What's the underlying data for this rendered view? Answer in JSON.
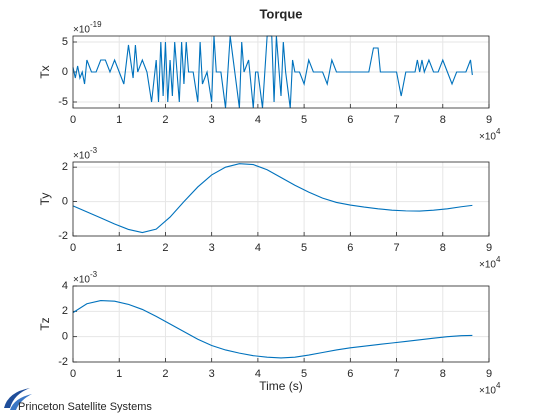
{
  "logo": "Princeton Satellite Systems",
  "chart_data": [
    {
      "type": "line",
      "title": "Torque",
      "y_label": "Tx",
      "grid": true,
      "x_multiplier": "×10",
      "x_exponent": "4",
      "y_multiplier": "×10",
      "y_exponent": "-19",
      "xlim": [
        0,
        90000
      ],
      "xticks": [
        0,
        {
          "value": 10000,
          "label": "1"
        },
        {
          "value": 20000,
          "label": "2"
        },
        {
          "value": 30000,
          "label": "3"
        },
        {
          "value": 40000,
          "label": "4"
        },
        {
          "value": 50000,
          "label": "5"
        },
        {
          "value": 60000,
          "label": "6"
        },
        {
          "value": 70000,
          "label": "7"
        },
        {
          "value": 80000,
          "label": "8"
        },
        {
          "value": 90000,
          "label": "9"
        }
      ],
      "ylim": [
        -6e-19,
        6e-19
      ],
      "yticks": [
        {
          "value": -5e-19,
          "label": "-5"
        },
        0,
        {
          "value": 5e-19,
          "label": "5"
        }
      ],
      "series": [
        {
          "name": "Tx",
          "color": "#0072bd",
          "x": [
            0,
            500,
            1000,
            1500,
            2000,
            2500,
            3000,
            4000,
            5000,
            6000,
            7000,
            8000,
            9000,
            10000,
            11000,
            12000,
            13000,
            13500,
            14000,
            15000,
            16000,
            17000,
            18000,
            18500,
            19000,
            19500,
            20000,
            20500,
            21000,
            21500,
            22000,
            22500,
            23000,
            23500,
            24000,
            24500,
            25000,
            26000,
            27000,
            27500,
            28000,
            29000,
            30000,
            30500,
            31000,
            32000,
            33000,
            33500,
            34000,
            35000,
            36000,
            36500,
            37000,
            38000,
            39000,
            39500,
            40000,
            41000,
            42000,
            43000,
            43500,
            44000,
            45000,
            45500,
            46000,
            47000,
            47500,
            48000,
            49000,
            50000,
            51000,
            52000,
            54000,
            55000,
            56000,
            57000,
            58000,
            60000,
            62000,
            64000,
            65000,
            66000,
            66500,
            68000,
            70000,
            71000,
            72000,
            74000,
            74500,
            75000,
            75500,
            76000,
            77000,
            78000,
            79000,
            80000,
            81000,
            82000,
            83000,
            84000,
            85000,
            86000,
            86400
          ],
          "values": [
            8e-20,
            -1e-19,
            1e-19,
            -1e-19,
            0,
            -2e-19,
            2e-19,
            0,
            0,
            2e-19,
            2e-19,
            0,
            2e-19,
            0,
            -2e-19,
            4.5e-19,
            -1e-19,
            4.5e-19,
            0,
            2e-19,
            0,
            -5e-19,
            2e-19,
            -5e-19,
            5e-19,
            -4e-19,
            5e-19,
            -5e-19,
            2e-19,
            -4e-19,
            5e-19,
            0,
            -5e-19,
            5e-19,
            -2e-19,
            5e-19,
            0,
            0,
            -5e-19,
            5e-19,
            -2e-19,
            0,
            -5e-19,
            6e-19,
            0,
            0,
            -6e-19,
            0,
            6e-19,
            0,
            -6e-19,
            5e-19,
            0,
            2e-19,
            -6e-19,
            0,
            0,
            -6e-19,
            6e-19,
            6e-19,
            -5e-19,
            6e-19,
            -4e-19,
            5e-19,
            0,
            -6e-19,
            2e-19,
            0,
            0,
            -2e-19,
            2e-19,
            0,
            0,
            -2e-19,
            2e-19,
            0,
            0,
            0,
            0,
            0,
            4e-19,
            4e-19,
            0,
            0,
            0,
            -4e-19,
            0,
            0,
            2e-19,
            0,
            2e-19,
            0,
            2e-19,
            0,
            0,
            2e-19,
            0,
            -2e-19,
            0,
            0,
            0,
            2e-19,
            -5e-20
          ]
        }
      ]
    },
    {
      "type": "line",
      "y_label": "Ty",
      "grid": true,
      "x_multiplier": "×10",
      "x_exponent": "4",
      "y_multiplier": "×10",
      "y_exponent": "-3",
      "xlim": [
        0,
        90000
      ],
      "xticks": [
        0,
        {
          "value": 10000,
          "label": "1"
        },
        {
          "value": 20000,
          "label": "2"
        },
        {
          "value": 30000,
          "label": "3"
        },
        {
          "value": 40000,
          "label": "4"
        },
        {
          "value": 50000,
          "label": "5"
        },
        {
          "value": 60000,
          "label": "6"
        },
        {
          "value": 70000,
          "label": "7"
        },
        {
          "value": 80000,
          "label": "8"
        },
        {
          "value": 90000,
          "label": "9"
        }
      ],
      "ylim": [
        -0.002,
        0.0023
      ],
      "yticks": [
        {
          "value": -0.002,
          "label": "-2"
        },
        0,
        {
          "value": 0.002,
          "label": "2"
        }
      ],
      "series": [
        {
          "name": "Ty",
          "color": "#0072bd",
          "x": [
            0,
            3000,
            6000,
            9000,
            12000,
            15000,
            18000,
            21000,
            24000,
            27000,
            30000,
            33000,
            36000,
            39000,
            42000,
            45000,
            48000,
            51000,
            54000,
            57000,
            60000,
            63000,
            66000,
            69000,
            72000,
            75000,
            78000,
            81000,
            84000,
            86400
          ],
          "values": [
            -0.00025,
            -0.0006,
            -0.00095,
            -0.0013,
            -0.00162,
            -0.0018,
            -0.0016,
            -0.0009,
            0,
            0.00085,
            0.00155,
            0.002,
            0.0022,
            0.00215,
            0.00185,
            0.0014,
            0.00095,
            0.00055,
            0.0002,
            -5e-05,
            -0.0002,
            -0.00032,
            -0.00042,
            -0.0005,
            -0.00054,
            -0.00055,
            -0.0005,
            -0.00042,
            -0.0003,
            -0.00022
          ]
        }
      ]
    },
    {
      "type": "line",
      "y_label": "Tz",
      "x_label": "Time (s)",
      "grid": true,
      "x_multiplier": "×10",
      "x_exponent": "4",
      "y_multiplier": "×10",
      "y_exponent": "-3",
      "xlim": [
        0,
        90000
      ],
      "xticks": [
        0,
        {
          "value": 10000,
          "label": "1"
        },
        {
          "value": 20000,
          "label": "2"
        },
        {
          "value": 30000,
          "label": "3"
        },
        {
          "value": 40000,
          "label": "4"
        },
        {
          "value": 50000,
          "label": "5"
        },
        {
          "value": 60000,
          "label": "6"
        },
        {
          "value": 70000,
          "label": "7"
        },
        {
          "value": 80000,
          "label": "8"
        },
        {
          "value": 90000,
          "label": "9"
        }
      ],
      "ylim": [
        -0.002,
        0.004
      ],
      "yticks": [
        {
          "value": -0.002,
          "label": "-2"
        },
        0,
        {
          "value": 0.002,
          "label": "2"
        },
        {
          "value": 0.004,
          "label": "4"
        }
      ],
      "series": [
        {
          "name": "Tz",
          "color": "#0072bd",
          "x": [
            0,
            3000,
            6000,
            9000,
            12000,
            15000,
            18000,
            21000,
            24000,
            27000,
            30000,
            33000,
            36000,
            39000,
            42000,
            45000,
            48000,
            51000,
            54000,
            57000,
            60000,
            63000,
            66000,
            69000,
            72000,
            75000,
            78000,
            81000,
            84000,
            86400
          ],
          "values": [
            0.0019,
            0.0026,
            0.00285,
            0.0028,
            0.00255,
            0.00215,
            0.0016,
            0.001,
            0.0004,
            -0.0002,
            -0.0007,
            -0.00105,
            -0.0013,
            -0.0015,
            -0.00162,
            -0.00168,
            -0.00162,
            -0.00145,
            -0.00125,
            -0.00105,
            -0.00088,
            -0.00075,
            -0.00062,
            -0.0005,
            -0.00038,
            -0.00025,
            -0.00012,
            0,
            8e-05,
            0.0001
          ]
        }
      ]
    }
  ]
}
